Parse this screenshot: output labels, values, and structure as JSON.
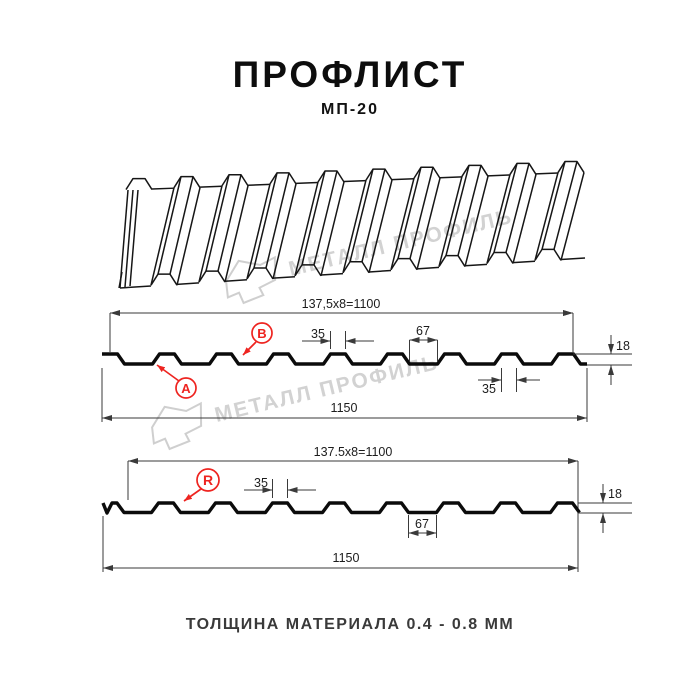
{
  "header": {
    "title": "ПРОФЛИСТ",
    "subtitle": "МП-20"
  },
  "watermark": {
    "text": "МЕТАЛЛ ПРОФИЛЬ"
  },
  "profile_top": {
    "dim_pitch": "137,5x8=1100",
    "dim_total_width": "1150",
    "dim_crest_width_top": "35",
    "dim_valley_width": "67",
    "dim_height": "18",
    "dim_crest_width_bottom": "35",
    "marker_a": "A",
    "marker_b": "B"
  },
  "profile_bottom": {
    "dim_pitch": "137.5x8=1100",
    "dim_total_width": "1150",
    "dim_crest_width": "35",
    "dim_valley_width": "67",
    "dim_height": "18",
    "marker_r": "R"
  },
  "footer": {
    "thickness_note": "ТОЛЩИНА МАТЕРИАЛА 0.4 - 0.8 ММ"
  },
  "colors": {
    "accent_red": "#ee2420",
    "watermark_gray": "#d2d2d2",
    "line_black": "#0b0b0b"
  }
}
